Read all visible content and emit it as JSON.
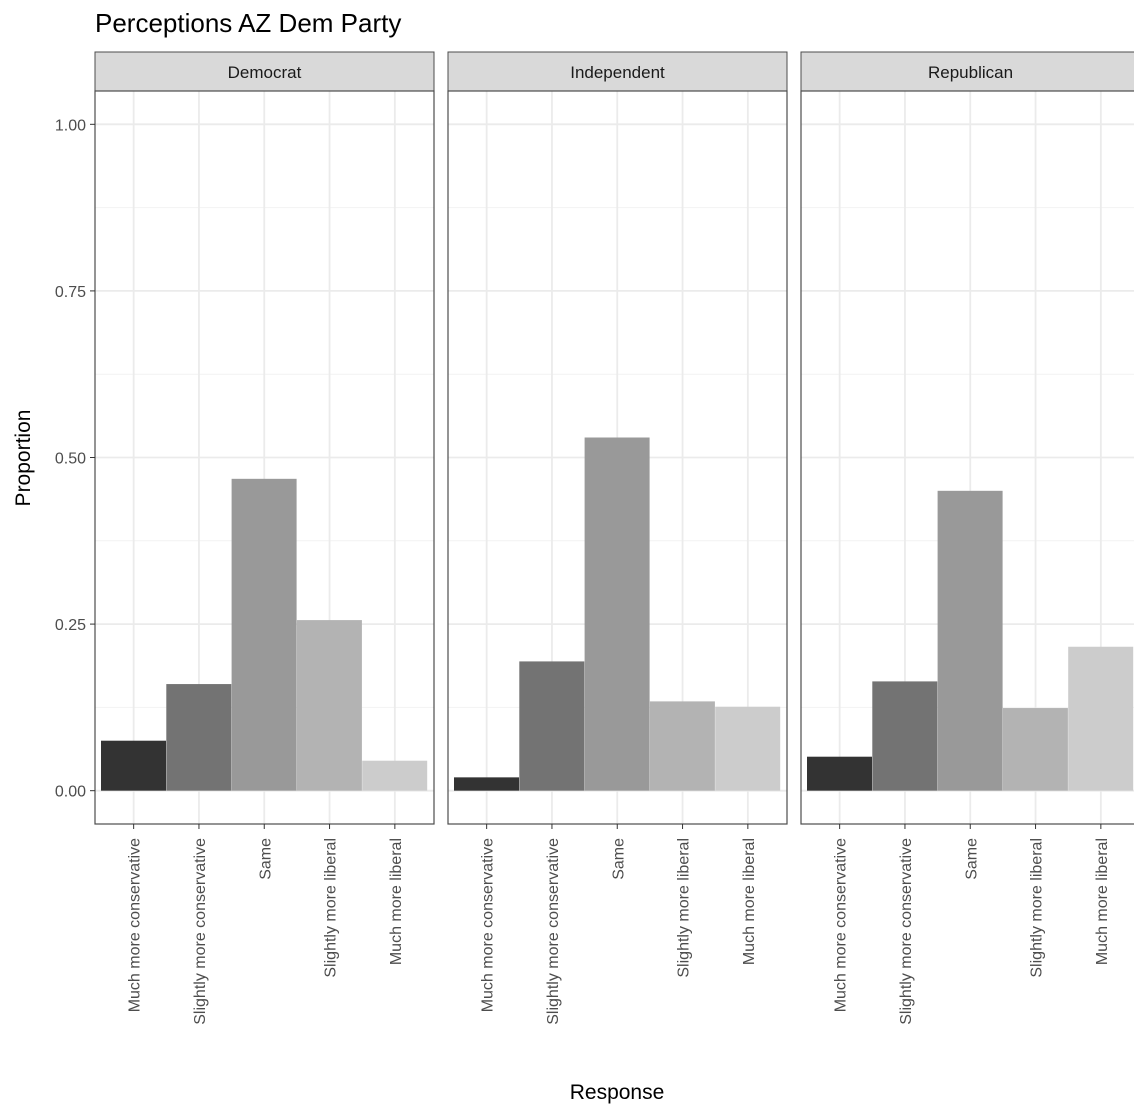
{
  "chart_data": {
    "type": "bar",
    "title": "Perceptions AZ Dem Party",
    "xlabel": "Response",
    "ylabel": "Proportion",
    "ylim": [
      -0.05,
      1.05
    ],
    "yticks": [
      "0.00",
      "0.25",
      "0.50",
      "0.75",
      "1.00"
    ],
    "grid": true,
    "categories": [
      "Much more conservative",
      "Slightly more conservative",
      "Same",
      "Slightly more liberal",
      "Much more liberal"
    ],
    "bar_colors": [
      "#333333",
      "#737373",
      "#999999",
      "#b3b3b3",
      "#cccccc"
    ],
    "facets": [
      {
        "name": "Democrat",
        "values": [
          0.075,
          0.16,
          0.468,
          0.256,
          0.045
        ]
      },
      {
        "name": "Independent",
        "values": [
          0.02,
          0.194,
          0.53,
          0.134,
          0.126
        ]
      },
      {
        "name": "Republican",
        "values": [
          0.051,
          0.164,
          0.45,
          0.124,
          0.216
        ]
      }
    ]
  }
}
